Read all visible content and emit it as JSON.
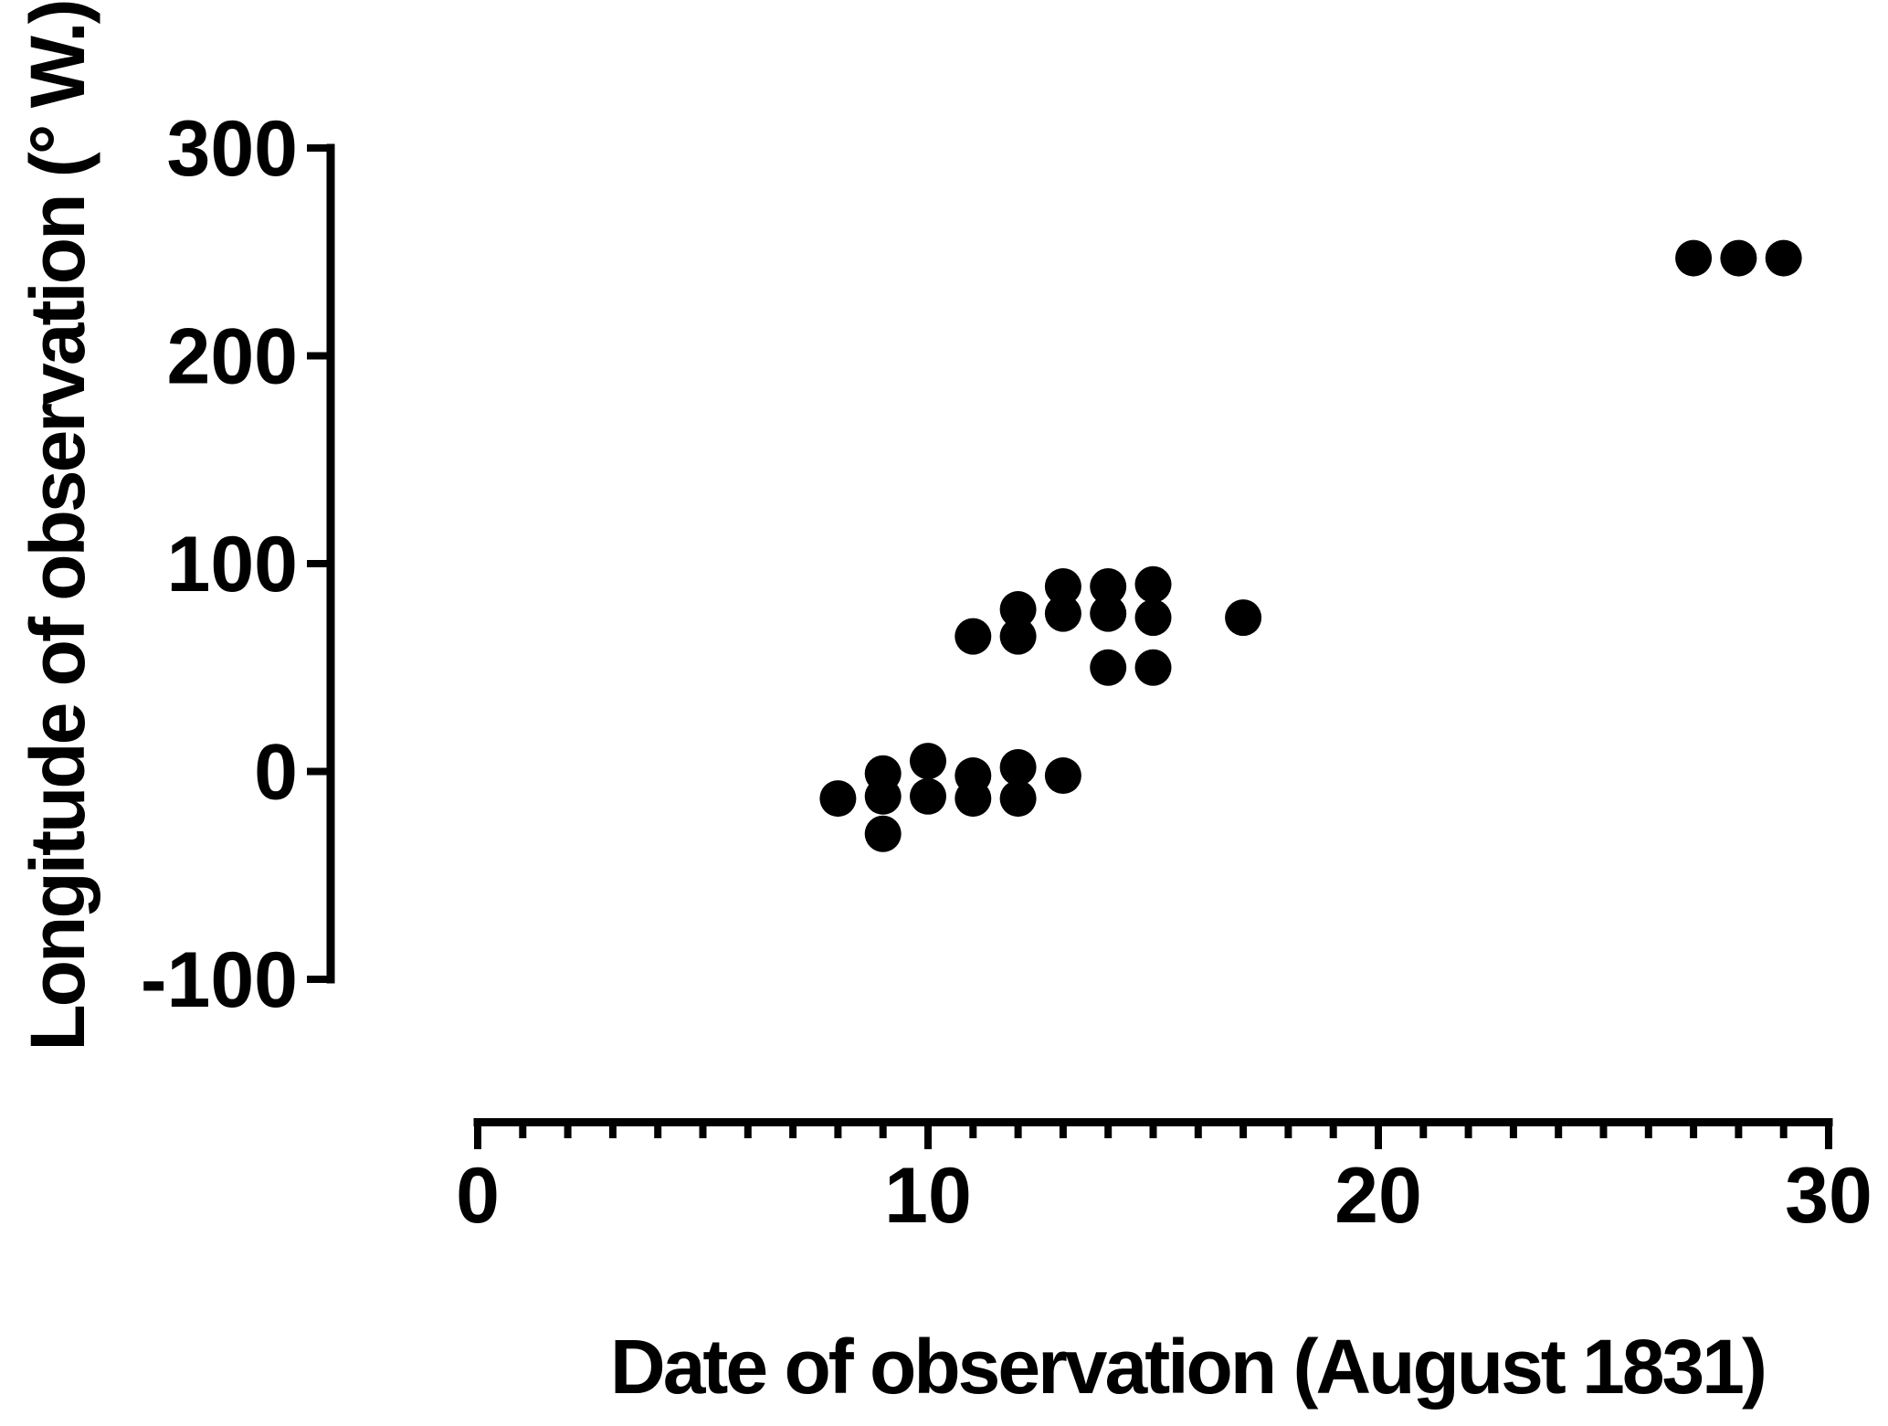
{
  "chart_data": {
    "type": "scatter",
    "title": "",
    "xlabel": "Date of observation (August 1831)",
    "ylabel": "Longitude of observation (° W.)",
    "xlim": [
      0,
      30
    ],
    "ylim": [
      -100,
      300
    ],
    "x_major_ticks": [
      0,
      10,
      20,
      30
    ],
    "x_minor_tick_step": 1,
    "y_ticks": [
      300,
      200,
      100,
      0,
      -100
    ],
    "grid": false,
    "legend": false,
    "marker": {
      "shape": "circle",
      "color": "#000000",
      "radius_px": 20
    },
    "background_color": "#ffffff",
    "axis_color": "#000000",
    "points": [
      {
        "x": 8,
        "y": -13
      },
      {
        "x": 9,
        "y": -1
      },
      {
        "x": 9,
        "y": -12
      },
      {
        "x": 9,
        "y": -30
      },
      {
        "x": 10,
        "y": 5
      },
      {
        "x": 10,
        "y": -12
      },
      {
        "x": 11,
        "y": -2
      },
      {
        "x": 11,
        "y": -13
      },
      {
        "x": 12,
        "y": 2
      },
      {
        "x": 12,
        "y": -13
      },
      {
        "x": 13,
        "y": -2
      },
      {
        "x": 11,
        "y": 65
      },
      {
        "x": 12,
        "y": 78
      },
      {
        "x": 12,
        "y": 65
      },
      {
        "x": 13,
        "y": 89
      },
      {
        "x": 13,
        "y": 76
      },
      {
        "x": 14,
        "y": 89
      },
      {
        "x": 14,
        "y": 76
      },
      {
        "x": 14,
        "y": 50
      },
      {
        "x": 15,
        "y": 90
      },
      {
        "x": 15,
        "y": 74
      },
      {
        "x": 15,
        "y": 50
      },
      {
        "x": 17,
        "y": 74
      },
      {
        "x": 27,
        "y": 247
      },
      {
        "x": 28,
        "y": 247
      },
      {
        "x": 29,
        "y": 247
      }
    ]
  }
}
